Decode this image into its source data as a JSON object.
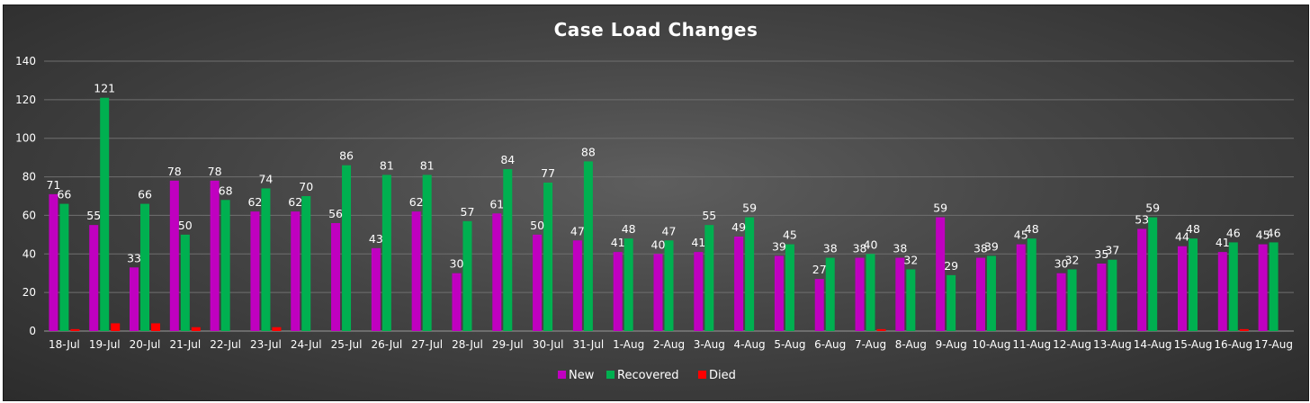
{
  "chart_data": {
    "type": "bar",
    "title": "Case Load Changes",
    "xlabel": "",
    "ylabel": "",
    "ylim": [
      0,
      140
    ],
    "yticks": [
      0,
      20,
      40,
      60,
      80,
      100,
      120,
      140
    ],
    "grid": true,
    "legend_position": "bottom",
    "categories": [
      "18-Jul",
      "19-Jul",
      "20-Jul",
      "21-Jul",
      "22-Jul",
      "23-Jul",
      "24-Jul",
      "25-Jul",
      "26-Jul",
      "27-Jul",
      "28-Jul",
      "29-Jul",
      "30-Jul",
      "31-Jul",
      "1-Aug",
      "2-Aug",
      "3-Aug",
      "4-Aug",
      "5-Aug",
      "6-Aug",
      "7-Aug",
      "8-Aug",
      "9-Aug",
      "10-Aug",
      "11-Aug",
      "12-Aug",
      "13-Aug",
      "14-Aug",
      "15-Aug",
      "16-Aug",
      "17-Aug"
    ],
    "series": [
      {
        "name": "New",
        "color": "#c000c0",
        "show_labels": true,
        "values": [
          71,
          55,
          33,
          78,
          78,
          62,
          62,
          56,
          43,
          62,
          30,
          61,
          50,
          47,
          41,
          40,
          41,
          49,
          39,
          27,
          38,
          38,
          59,
          38,
          45,
          30,
          35,
          53,
          44,
          41,
          45
        ]
      },
      {
        "name": "Recovered",
        "color": "#00b050",
        "show_labels": true,
        "values": [
          66,
          121,
          66,
          50,
          68,
          74,
          70,
          86,
          81,
          81,
          57,
          84,
          77,
          88,
          48,
          47,
          55,
          59,
          45,
          38,
          40,
          32,
          29,
          39,
          48,
          32,
          37,
          59,
          48,
          46,
          46
        ]
      },
      {
        "name": "Died",
        "color": "#ff0000",
        "show_labels": false,
        "values": [
          1,
          4,
          4,
          2,
          0,
          2,
          0,
          0,
          0,
          0,
          0,
          0,
          0,
          0,
          0,
          0,
          0,
          0,
          0,
          0,
          1,
          0,
          0,
          0,
          0,
          0,
          0,
          0,
          0,
          1,
          0
        ]
      }
    ]
  }
}
